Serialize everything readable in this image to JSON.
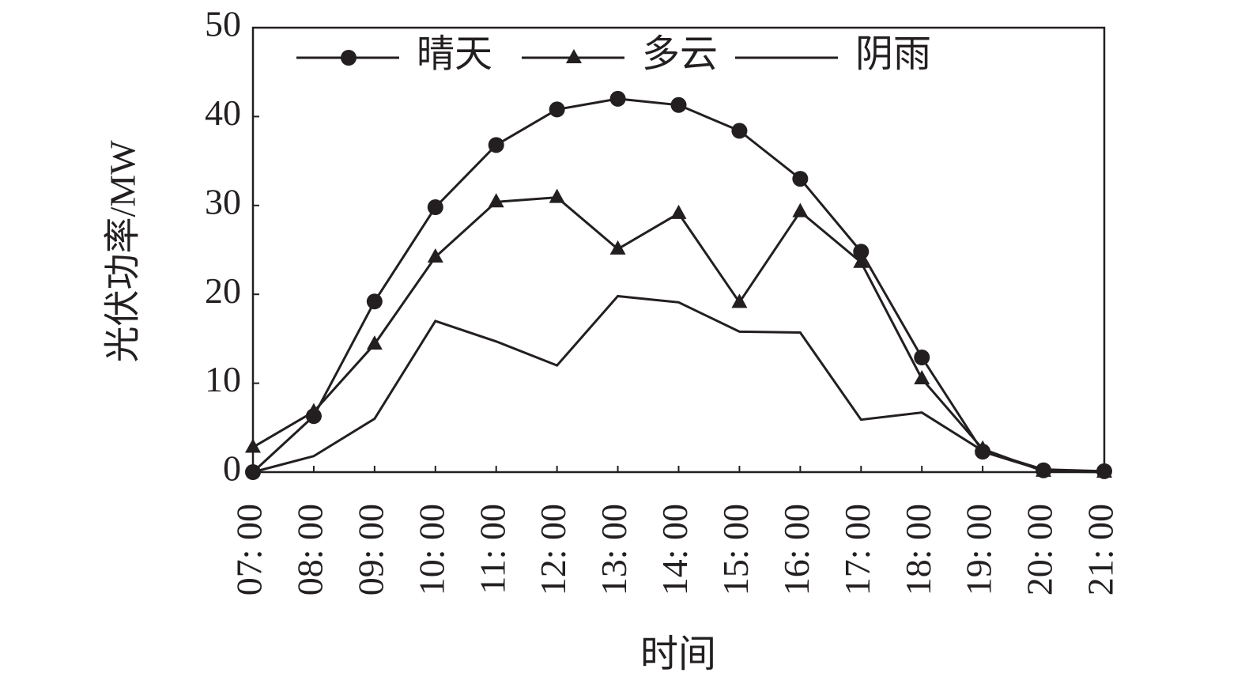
{
  "chart_data": {
    "type": "line",
    "x_label": "时间",
    "y_label": "光伏功率/MW",
    "categories": [
      "07: 00",
      "08: 00",
      "09: 00",
      "10: 00",
      "11: 00",
      "12: 00",
      "13: 00",
      "14: 00",
      "15: 00",
      "16: 00",
      "17: 00",
      "18: 00",
      "19: 00",
      "20: 00",
      "21: 00"
    ],
    "series": [
      {
        "name": "晴天",
        "color": "#231f20",
        "marker": "circle",
        "values": [
          0,
          6.3,
          19.2,
          29.8,
          36.8,
          40.8,
          42.0,
          41.3,
          38.4,
          33.0,
          24.8,
          12.9,
          2.3,
          0.2,
          0.1
        ]
      },
      {
        "name": "多云",
        "color": "#231f20",
        "marker": "triangle",
        "values": [
          2.8,
          6.8,
          14.4,
          24.2,
          30.4,
          30.9,
          25.1,
          29.1,
          19.1,
          29.3,
          23.6,
          10.5,
          2.6,
          0.1,
          0.0
        ]
      },
      {
        "name": "阴雨",
        "color": "#231f20",
        "marker": "none",
        "values": [
          0,
          1.8,
          6.0,
          17.0,
          14.7,
          12.0,
          19.8,
          19.1,
          15.8,
          15.7,
          5.9,
          6.7,
          2.4,
          0.3,
          0.1
        ]
      }
    ],
    "ylim": [
      0,
      50
    ],
    "yticks": [
      0,
      10,
      20,
      30,
      40,
      50
    ],
    "grid": false,
    "legend": "top"
  }
}
